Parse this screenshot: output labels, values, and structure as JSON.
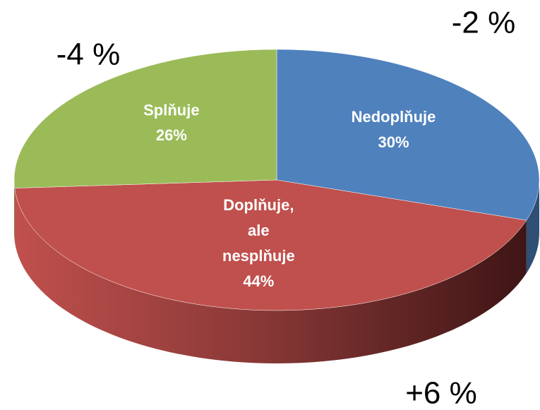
{
  "chart_data": {
    "type": "pie",
    "categories": [
      "Nedoplňuje",
      "Doplňuje, ale nesplňuje",
      "Splňuje"
    ],
    "values": [
      30,
      44,
      26
    ],
    "value_labels": [
      "30%",
      "44%",
      "26%"
    ],
    "colors": [
      "#4f81bd",
      "#c0504d",
      "#9bbb59"
    ],
    "annotations": [
      "-2 %",
      "+6 %",
      "-4 %"
    ]
  }
}
